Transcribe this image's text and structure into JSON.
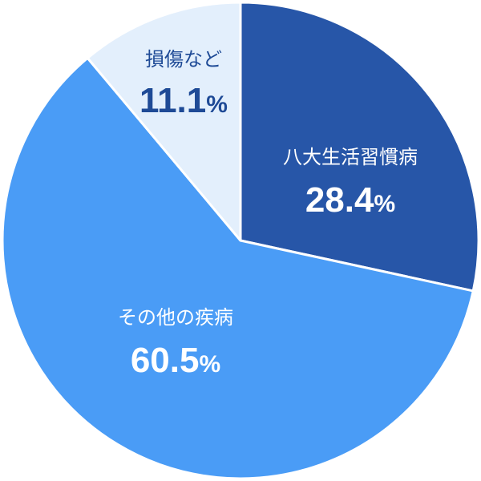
{
  "chart_data": {
    "type": "pie",
    "title": "",
    "start_angle_deg": 0,
    "direction": "clockwise",
    "slices": [
      {
        "label": "八大生活習慣病",
        "value": 28.4,
        "display": "28.4",
        "unit": "%",
        "color": "#2756a8",
        "text_color": "#ffffff"
      },
      {
        "label": "その他の疾病",
        "value": 60.5,
        "display": "60.5",
        "unit": "%",
        "color": "#4a9cf6",
        "text_color": "#ffffff"
      },
      {
        "label": "損傷など",
        "value": 11.1,
        "display": "11.1",
        "unit": "%",
        "color": "#e3effc",
        "text_color": "#1e4a96"
      }
    ]
  }
}
